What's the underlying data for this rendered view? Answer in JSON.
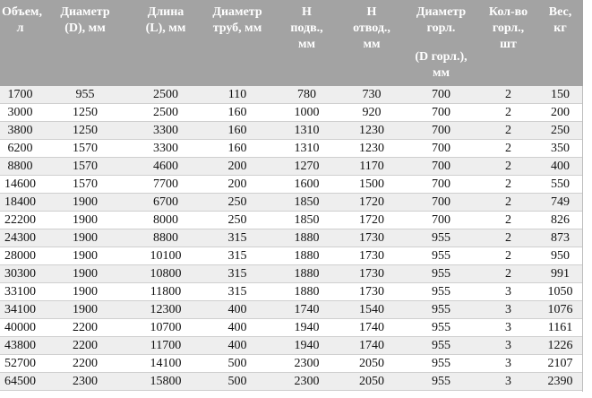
{
  "headers": [
    [
      "Объем,",
      "л"
    ],
    [
      "Диаметр",
      "(D), мм"
    ],
    [
      "Длина",
      "(L), мм"
    ],
    [
      "Диаметр",
      "труб, мм"
    ],
    [
      "Н",
      "подв.,",
      "мм"
    ],
    [
      "Н",
      "отвод.,",
      "мм"
    ],
    [
      "Диаметр",
      "горл."
    ],
    [
      "Кол-во",
      "горл.,",
      "шт"
    ],
    [
      "Вес,",
      "кг"
    ]
  ],
  "header_extra": [
    "(D горл.),",
    "мм"
  ],
  "rows": [
    [
      "1700",
      "955",
      "2500",
      "110",
      "780",
      "730",
      "700",
      "2",
      "150"
    ],
    [
      "3000",
      "1250",
      "2500",
      "160",
      "1000",
      "920",
      "700",
      "2",
      "200"
    ],
    [
      "3800",
      "1250",
      "3300",
      "160",
      "1310",
      "1230",
      "700",
      "2",
      "250"
    ],
    [
      "6200",
      "1570",
      "3300",
      "160",
      "1310",
      "1230",
      "700",
      "2",
      "350"
    ],
    [
      "8800",
      "1570",
      "4600",
      "200",
      "1270",
      "1170",
      "700",
      "2",
      "400"
    ],
    [
      "14600",
      "1570",
      "7700",
      "200",
      "1600",
      "1500",
      "700",
      "2",
      "550"
    ],
    [
      "18400",
      "1900",
      "6700",
      "250",
      "1850",
      "1720",
      "700",
      "2",
      "749"
    ],
    [
      "22200",
      "1900",
      "8000",
      "250",
      "1850",
      "1720",
      "700",
      "2",
      "826"
    ],
    [
      "24300",
      "1900",
      "8800",
      "315",
      "1880",
      "1730",
      "955",
      "2",
      "873"
    ],
    [
      "28000",
      "1900",
      "10100",
      "315",
      "1880",
      "1730",
      "955",
      "2",
      "950"
    ],
    [
      "30300",
      "1900",
      "10800",
      "315",
      "1880",
      "1730",
      "955",
      "2",
      "991"
    ],
    [
      "33100",
      "1900",
      "11800",
      "315",
      "1880",
      "1730",
      "955",
      "3",
      "1050"
    ],
    [
      "34100",
      "1900",
      "12300",
      "400",
      "1740",
      "1540",
      "955",
      "3",
      "1076"
    ],
    [
      "40000",
      "2200",
      "10700",
      "400",
      "1940",
      "1740",
      "955",
      "3",
      "1161"
    ],
    [
      "43800",
      "2200",
      "11700",
      "400",
      "1940",
      "1740",
      "955",
      "3",
      "1226"
    ],
    [
      "52700",
      "2200",
      "14100",
      "500",
      "2300",
      "2050",
      "955",
      "3",
      "2107"
    ],
    [
      "64500",
      "2300",
      "15800",
      "500",
      "2300",
      "2050",
      "955",
      "3",
      "2390"
    ]
  ],
  "colors": {
    "header_bg": "#a3a3a3",
    "row_alt": "#eeeeee",
    "border": "#cfcfcf"
  }
}
